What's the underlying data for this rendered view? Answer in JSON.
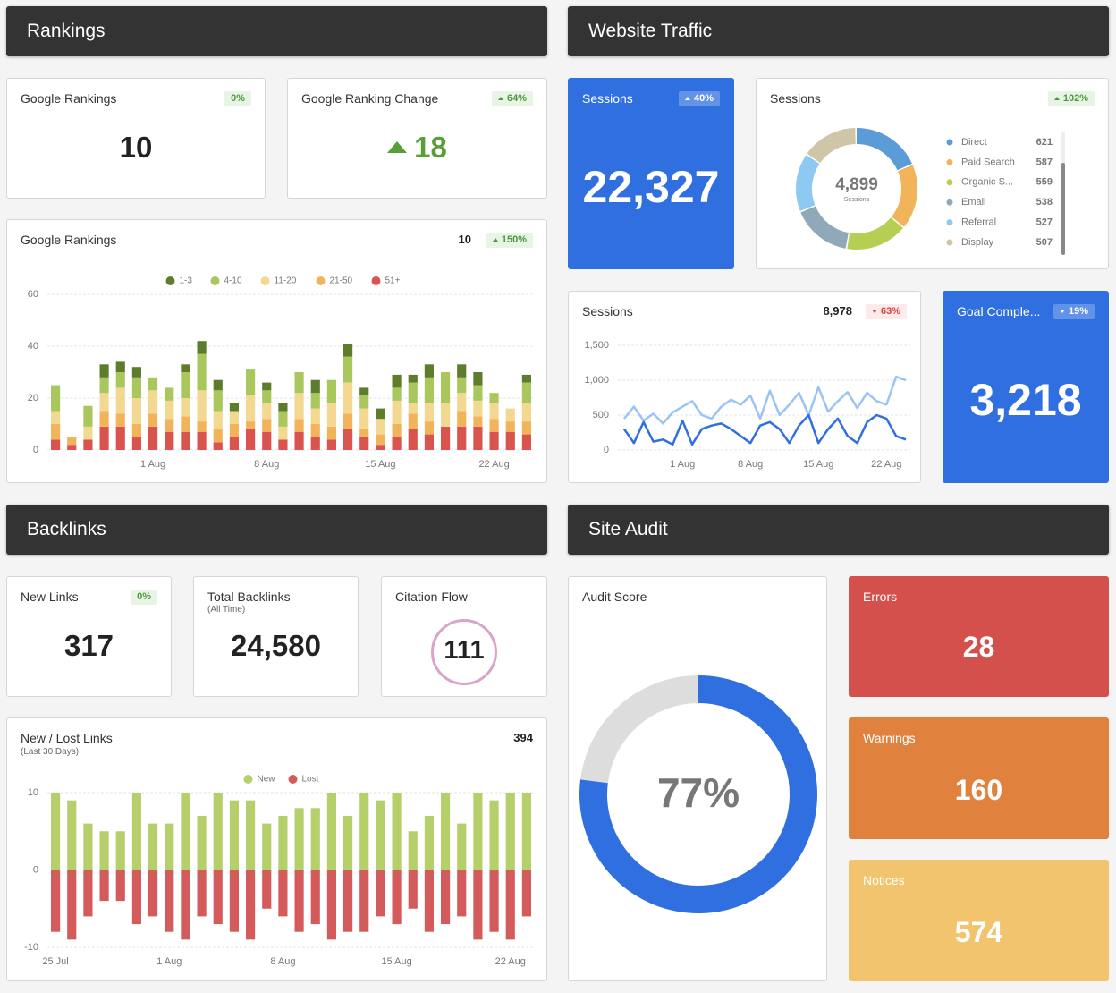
{
  "rankings": {
    "title": "Rankings",
    "google_rankings": {
      "label": "Google Rankings",
      "value": 10,
      "badge": "0%",
      "trend": "flat"
    },
    "ranking_change": {
      "label": "Google Ranking Change",
      "value": 18,
      "badge": "64%",
      "trend": "up"
    },
    "chart": {
      "type": "bar",
      "stacked": true,
      "label": "Google Rankings",
      "total": 10,
      "badge": "150%",
      "trend": "up",
      "categories": [
        null,
        null,
        null,
        null,
        null,
        null,
        "1 Aug",
        null,
        null,
        null,
        null,
        null,
        null,
        "8 Aug",
        null,
        null,
        null,
        null,
        null,
        null,
        "15 Aug",
        null,
        null,
        null,
        null,
        null,
        null,
        "22 Aug",
        null,
        null
      ],
      "series": [
        {
          "name": "51+",
          "color": "#d9534f",
          "values": [
            4,
            2,
            4,
            9,
            9,
            5,
            9,
            7,
            7,
            7,
            3,
            5,
            8,
            7,
            4,
            7,
            5,
            4,
            8,
            5,
            2,
            5,
            8,
            6,
            9,
            9,
            9,
            7,
            7,
            6
          ]
        },
        {
          "name": "21-50",
          "color": "#f2b45a",
          "values": [
            6,
            3,
            0,
            6,
            5,
            5,
            5,
            5,
            6,
            4,
            5,
            5,
            3,
            5,
            0,
            5,
            5,
            5,
            6,
            3,
            4,
            5,
            6,
            5,
            0,
            6,
            4,
            5,
            4,
            5
          ]
        },
        {
          "name": "11-20",
          "color": "#f3d891",
          "values": [
            5,
            0,
            5,
            7,
            10,
            10,
            9,
            7,
            7,
            12,
            7,
            5,
            10,
            6,
            5,
            10,
            6,
            9,
            12,
            8,
            6,
            9,
            4,
            7,
            9,
            7,
            6,
            6,
            5,
            7
          ]
        },
        {
          "name": "4-10",
          "color": "#a9c75c",
          "values": [
            10,
            0,
            8,
            6,
            6,
            8,
            5,
            5,
            10,
            14,
            8,
            0,
            10,
            5,
            6,
            8,
            6,
            9,
            10,
            5,
            0,
            5,
            8,
            10,
            12,
            6,
            6,
            4,
            0,
            8
          ]
        },
        {
          "name": "1-3",
          "color": "#5e7d2c",
          "values": [
            0,
            0,
            0,
            5,
            4,
            4,
            0,
            0,
            3,
            5,
            4,
            3,
            0,
            3,
            3,
            0,
            5,
            0,
            5,
            3,
            4,
            5,
            3,
            5,
            0,
            5,
            5,
            0,
            0,
            3
          ]
        }
      ],
      "legend_order": [
        4,
        3,
        2,
        1,
        0
      ],
      "ylim": [
        0,
        60
      ],
      "yticks": [
        0,
        20,
        40,
        60
      ],
      "grid": true
    }
  },
  "traffic": {
    "title": "Website Traffic",
    "sessions": {
      "label": "Sessions",
      "value": "22,327",
      "badge": "40%",
      "trend": "up"
    },
    "sources": {
      "type": "pie",
      "label": "Sessions",
      "badge": "102%",
      "trend": "up",
      "center_value": "4,899",
      "center_label": "Sessions",
      "categories": [
        "Direct",
        "Paid Search",
        "Organic S...",
        "Email",
        "Referral",
        "Display"
      ],
      "values": [
        621,
        587,
        559,
        538,
        527,
        507
      ],
      "colors": [
        "#5a9bd8",
        "#f2b45a",
        "#b5cf52",
        "#8fa9b8",
        "#8ec9f2",
        "#cfc6a8"
      ]
    },
    "sessions_chart": {
      "type": "line",
      "label": "Sessions",
      "total": "8,978",
      "badge": "63%",
      "trend": "down",
      "categories": [
        null,
        null,
        null,
        null,
        null,
        null,
        "1 Aug",
        null,
        null,
        null,
        null,
        null,
        null,
        "8 Aug",
        null,
        null,
        null,
        null,
        null,
        null,
        "15 Aug",
        null,
        null,
        null,
        null,
        null,
        null,
        "22 Aug",
        null,
        null
      ],
      "series": [
        {
          "color": "#9cc3f5",
          "values": [
            450,
            620,
            420,
            520,
            380,
            540,
            620,
            700,
            500,
            450,
            620,
            720,
            650,
            780,
            450,
            850,
            500,
            650,
            820,
            500,
            900,
            550,
            700,
            830,
            600,
            820,
            700,
            650,
            1050,
            1000
          ]
        },
        {
          "color": "#2f6fe0",
          "values": [
            300,
            100,
            400,
            120,
            150,
            80,
            420,
            80,
            300,
            350,
            380,
            300,
            200,
            100,
            350,
            400,
            300,
            100,
            350,
            500,
            100,
            300,
            450,
            200,
            100,
            400,
            500,
            450,
            200,
            150
          ]
        }
      ],
      "ylim": [
        0,
        1500
      ],
      "yticks": [
        0,
        500,
        {
          "value": 1000,
          "label": "1,000"
        },
        {
          "value": 1500,
          "label": "1,500"
        }
      ],
      "grid": true
    },
    "goal": {
      "label": "Goal Comple...",
      "badge": "19%",
      "trend": "down",
      "value": "3,218"
    }
  },
  "backlinks": {
    "title": "Backlinks",
    "new_links": {
      "label": "New Links",
      "badge": "0%",
      "trend": "flat",
      "value": 317
    },
    "total": {
      "label": "Total Backlinks",
      "sublabel": "(All Time)",
      "value": "24,580"
    },
    "citation": {
      "label": "Citation Flow",
      "value": 111
    },
    "chart": {
      "type": "bar",
      "stacked": true,
      "label": "New / Lost Links",
      "sublabel": "(Last 30 Days)",
      "total": 394,
      "categories": [
        "25 Jul",
        null,
        null,
        null,
        null,
        null,
        null,
        "1 Aug",
        null,
        null,
        null,
        null,
        null,
        null,
        "8 Aug",
        null,
        null,
        null,
        null,
        null,
        null,
        "15 Aug",
        null,
        null,
        null,
        null,
        null,
        null,
        "22 Aug",
        null
      ],
      "series": [
        {
          "name": "New",
          "color": "#b5d06a",
          "values": [
            10,
            9,
            6,
            5,
            5,
            10,
            6,
            6,
            10,
            7,
            10,
            9,
            9,
            6,
            7,
            8,
            8,
            10,
            7,
            10,
            9,
            10,
            5,
            7,
            10,
            6,
            10,
            9,
            10,
            10
          ]
        },
        {
          "name": "Lost",
          "color": "#d45b5b",
          "values": [
            -8,
            -9,
            -6,
            -4,
            -4,
            -7,
            -6,
            -8,
            -9,
            -6,
            -7,
            -8,
            -9,
            -5,
            -6,
            -8,
            -7,
            -9,
            -8,
            -8,
            -6,
            -7,
            -5,
            -8,
            -7,
            -6,
            -9,
            -8,
            -9,
            -6
          ]
        }
      ],
      "legend_order": [
        0,
        1
      ],
      "ylim": [
        -10,
        10
      ],
      "yticks": [
        -10,
        0,
        10
      ],
      "grid": true
    }
  },
  "site_audit": {
    "title": "Site Audit",
    "audit_score": {
      "type": "pie",
      "label": "Audit Score",
      "value": 77,
      "value_label": "77%",
      "color": "#2f6fe0",
      "rest_color": "#dddddd",
      "max": 100
    },
    "errors": {
      "label": "Errors",
      "value": 28
    },
    "warnings": {
      "label": "Warnings",
      "value": 160
    },
    "notices": {
      "label": "Notices",
      "value": 574
    }
  }
}
